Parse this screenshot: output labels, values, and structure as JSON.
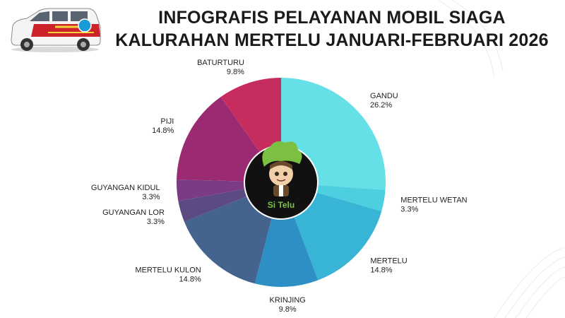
{
  "header": {
    "title_line1": "INFOGRAFIS PELAYANAN MOBIL SIAGA",
    "title_line2": "KALURAHAN MERTELU JANUARI-FEBRUARI 2026"
  },
  "logo": {
    "text": "Si Telu"
  },
  "colors": {
    "GANDU": "#64e0e6",
    "MERTELU WETAN": "#4dcfe0",
    "MERTELU": "#38b4d6",
    "KRINJING": "#2e8fc4",
    "MERTELU KULON": "#44648e",
    "GUYANGAN LOR": "#5c4a82",
    "GUYANGAN KIDUL": "#7c3c84",
    "PIJI": "#9a2a72",
    "BATURTURU": "#c72c5e"
  },
  "chart_data": {
    "type": "pie",
    "donut": true,
    "title": "INFOGRAFIS PELAYANAN MOBIL SIAGA KALURAHAN MERTELU JANUARI-FEBRUARI 2026",
    "categories": [
      "GANDU",
      "MERTELU WETAN",
      "MERTELU",
      "KRINJING",
      "MERTELU KULON",
      "GUYANGAN LOR",
      "GUYANGAN KIDUL",
      "PIJI",
      "BATURTURU"
    ],
    "values": [
      26.2,
      3.3,
      14.8,
      9.8,
      14.8,
      3.3,
      3.3,
      14.8,
      9.8
    ],
    "value_labels": [
      "26.2%",
      "3.3%",
      "14.8%",
      "9.8%",
      "14.8%",
      "3.3%",
      "3.3%",
      "14.8%",
      "9.8%"
    ]
  }
}
